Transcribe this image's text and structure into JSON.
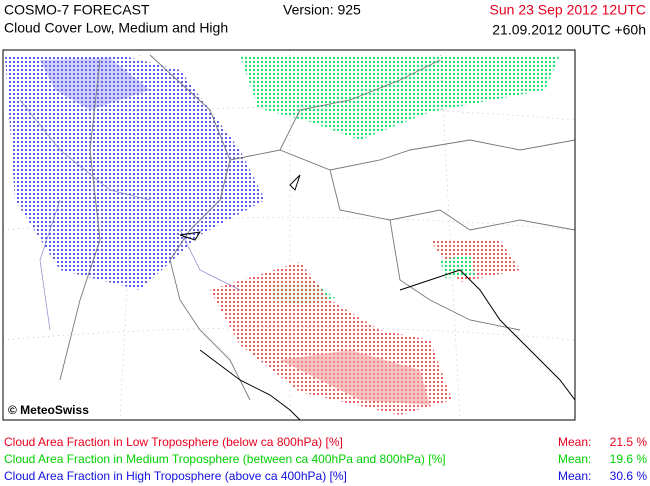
{
  "header": {
    "title": "COSMO-7 FORECAST",
    "subtitle": "Cloud Cover Low, Medium and High",
    "version": "Version: 925",
    "valid_time": "Sun 23 Sep 2012 12UTC",
    "run": "21.09.2012 00UTC +60h"
  },
  "map": {
    "credit": "© MeteoSwiss"
  },
  "legend": [
    {
      "label": "Cloud Area Fraction in Low Troposphere (below ca 800hPa) [%]",
      "mean_label": "Mean:",
      "mean": "21.5 %",
      "color": "#e8001e"
    },
    {
      "label": "Cloud Area Fraction in Medium Troposphere (between ca 400hPa and 800hPa) [%]",
      "mean_label": "Mean:",
      "mean": "19.6 %",
      "color": "#00d000"
    },
    {
      "label": "Cloud Area Fraction in High Troposphere (above ca 400hPa) [%]",
      "mean_label": "Mean:",
      "mean": "30.6 %",
      "color": "#1010e0"
    }
  ]
}
